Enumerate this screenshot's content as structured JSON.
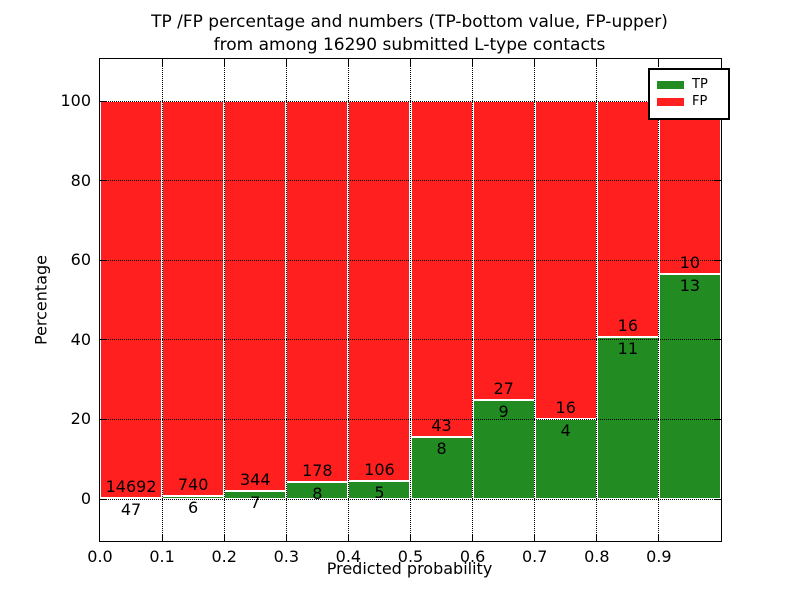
{
  "title": {
    "line1": "TP /FP percentage and numbers (TP-bottom value, FP-upper)",
    "line2": "from among 16290 submitted L-type contacts"
  },
  "axes": {
    "x_label": "Predicted probability",
    "y_label": "Percentage",
    "x_tick_labels": [
      "0.0",
      "0.1",
      "0.2",
      "0.3",
      "0.4",
      "0.5",
      "0.6",
      "0.7",
      "0.8",
      "0.9"
    ],
    "y_tick_labels": [
      "0",
      "20",
      "40",
      "60",
      "80",
      "100"
    ],
    "y_tick_values": [
      0,
      20,
      40,
      60,
      80,
      100
    ]
  },
  "legend": {
    "items": [
      {
        "label": "TP",
        "color": "#228B22"
      },
      {
        "label": "FP",
        "color": "#FF1F1F"
      }
    ]
  },
  "colors": {
    "tp": "#228B22",
    "fp": "#FF1F1F",
    "bar_edge": "#ffffff",
    "grid": "#000000",
    "background": "#ffffff"
  },
  "chart_data": {
    "type": "bar",
    "stacked": true,
    "normalized_to_percent": true,
    "title": "TP /FP percentage and numbers (TP-bottom value, FP-upper) from among 16290 submitted L-type contacts",
    "xlabel": "Predicted probability",
    "ylabel": "Percentage",
    "total_contacts": 16290,
    "bin_edges": [
      0.0,
      0.1,
      0.2,
      0.3,
      0.4,
      0.5,
      0.6,
      0.7,
      0.8,
      0.9,
      1.0
    ],
    "categories": [
      "0.0-0.1",
      "0.1-0.2",
      "0.2-0.3",
      "0.3-0.4",
      "0.4-0.5",
      "0.5-0.6",
      "0.6-0.7",
      "0.7-0.8",
      "0.8-0.9",
      "0.9-1.0"
    ],
    "series": [
      {
        "name": "TP",
        "color": "#228B22",
        "counts": [
          47,
          6,
          7,
          8,
          5,
          8,
          9,
          4,
          11,
          13
        ]
      },
      {
        "name": "FP",
        "color": "#FF1F1F",
        "counts": [
          14692,
          740,
          344,
          178,
          106,
          43,
          27,
          16,
          16,
          10
        ]
      }
    ],
    "bar_totals_percent": 100,
    "xlim": [
      0.0,
      1.0
    ],
    "ylim": [
      -10.5,
      110.5
    ],
    "grid": "dotted, drawn over bars",
    "legend_position": "upper right"
  }
}
